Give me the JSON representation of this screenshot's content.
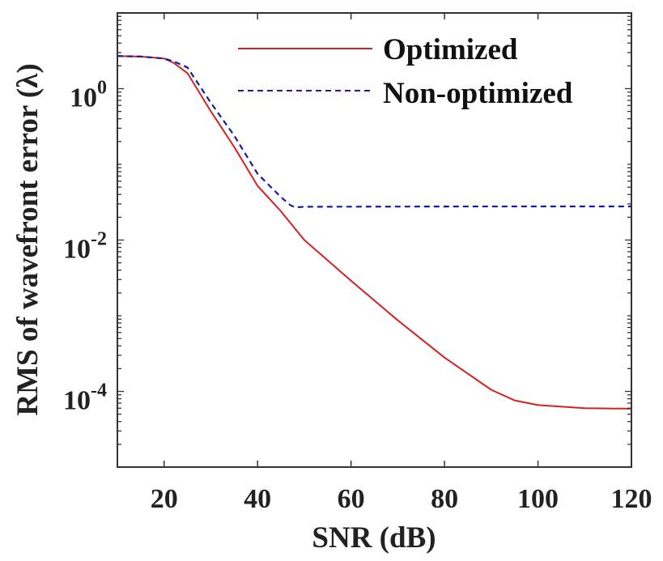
{
  "chart_data": {
    "type": "line",
    "title": "",
    "xlabel": "SNR (dB)",
    "ylabel": "RMS of wavefront error (λ)",
    "xscale": "linear",
    "yscale": "log",
    "xlim": [
      10,
      120
    ],
    "ylim": [
      1e-05,
      10
    ],
    "x_ticks": [
      20,
      40,
      60,
      80,
      100,
      120
    ],
    "x_tick_labels": [
      "20",
      "40",
      "60",
      "80",
      "100",
      "120"
    ],
    "y_ticks": [
      1,
      0.01,
      0.0001
    ],
    "y_tick_labels": [
      {
        "base": "10",
        "exp": "0"
      },
      {
        "base": "10",
        "exp": "-2"
      },
      {
        "base": "10",
        "exp": "-4"
      }
    ],
    "grid": false,
    "legend_position": "top-right",
    "series": [
      {
        "name": "Optimized",
        "color": "#d42020",
        "style": "solid",
        "x": [
          10,
          15,
          20,
          22,
          25,
          30,
          35,
          40,
          45,
          50,
          60,
          70,
          80,
          90,
          95,
          100,
          110,
          120
        ],
        "y": [
          2.7,
          2.65,
          2.5,
          2.2,
          1.6,
          0.5,
          0.17,
          0.052,
          0.024,
          0.01,
          0.0029,
          0.00087,
          0.00028,
          0.000105,
          7.6e-05,
          6.6e-05,
          6e-05,
          5.9e-05
        ]
      },
      {
        "name": "Non-optimized",
        "color": "#1a1aa0",
        "style": "dashed",
        "x": [
          10,
          15,
          20,
          22,
          25,
          30,
          35,
          40,
          45,
          47,
          48,
          50,
          60,
          80,
          100,
          120
        ],
        "y": [
          2.7,
          2.65,
          2.5,
          2.3,
          1.9,
          0.65,
          0.24,
          0.075,
          0.037,
          0.029,
          0.027,
          0.0275,
          0.0276,
          0.0277,
          0.0278,
          0.0278
        ]
      }
    ]
  }
}
